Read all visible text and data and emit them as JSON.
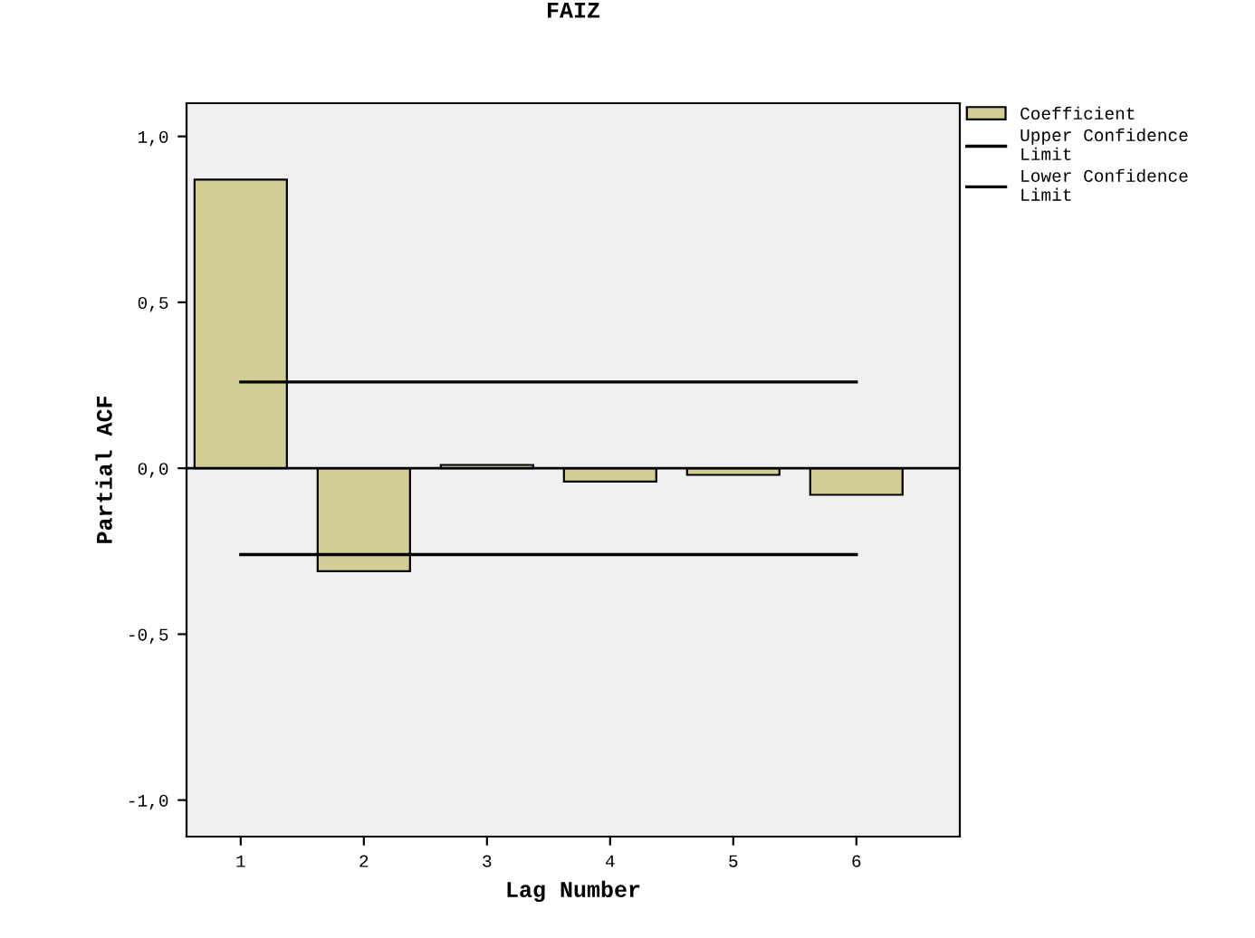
{
  "chart_data": {
    "type": "bar",
    "title": "FAIZ",
    "xlabel": "Lag Number",
    "ylabel": "Partial ACF",
    "categories": [
      "1",
      "2",
      "3",
      "4",
      "5",
      "6"
    ],
    "series": [
      {
        "name": "Coefficient",
        "color": "#d3ce96",
        "values": [
          0.87,
          -0.31,
          0.01,
          -0.04,
          -0.02,
          -0.08
        ]
      },
      {
        "name": "Upper Confidence Limit",
        "type": "line",
        "color": "#000000",
        "values": [
          0.26,
          0.26,
          0.26,
          0.26,
          0.26,
          0.26
        ]
      },
      {
        "name": "Lower Confidence Limit",
        "type": "line",
        "color": "#000000",
        "values": [
          -0.26,
          -0.26,
          -0.26,
          -0.26,
          -0.26,
          -0.26
        ]
      }
    ],
    "ylim": [
      -1.11,
      1.1
    ],
    "yticks": [
      {
        "value": -1.0,
        "label": "-1,0"
      },
      {
        "value": -0.5,
        "label": "-0,5"
      },
      {
        "value": 0.0,
        "label": "0,0"
      },
      {
        "value": 0.5,
        "label": "0,5"
      },
      {
        "value": 1.0,
        "label": "1,0"
      }
    ],
    "ref_lines": [
      {
        "axis": "y",
        "value": 0,
        "color": "#000000"
      }
    ],
    "grid": false,
    "legend": "top right"
  }
}
